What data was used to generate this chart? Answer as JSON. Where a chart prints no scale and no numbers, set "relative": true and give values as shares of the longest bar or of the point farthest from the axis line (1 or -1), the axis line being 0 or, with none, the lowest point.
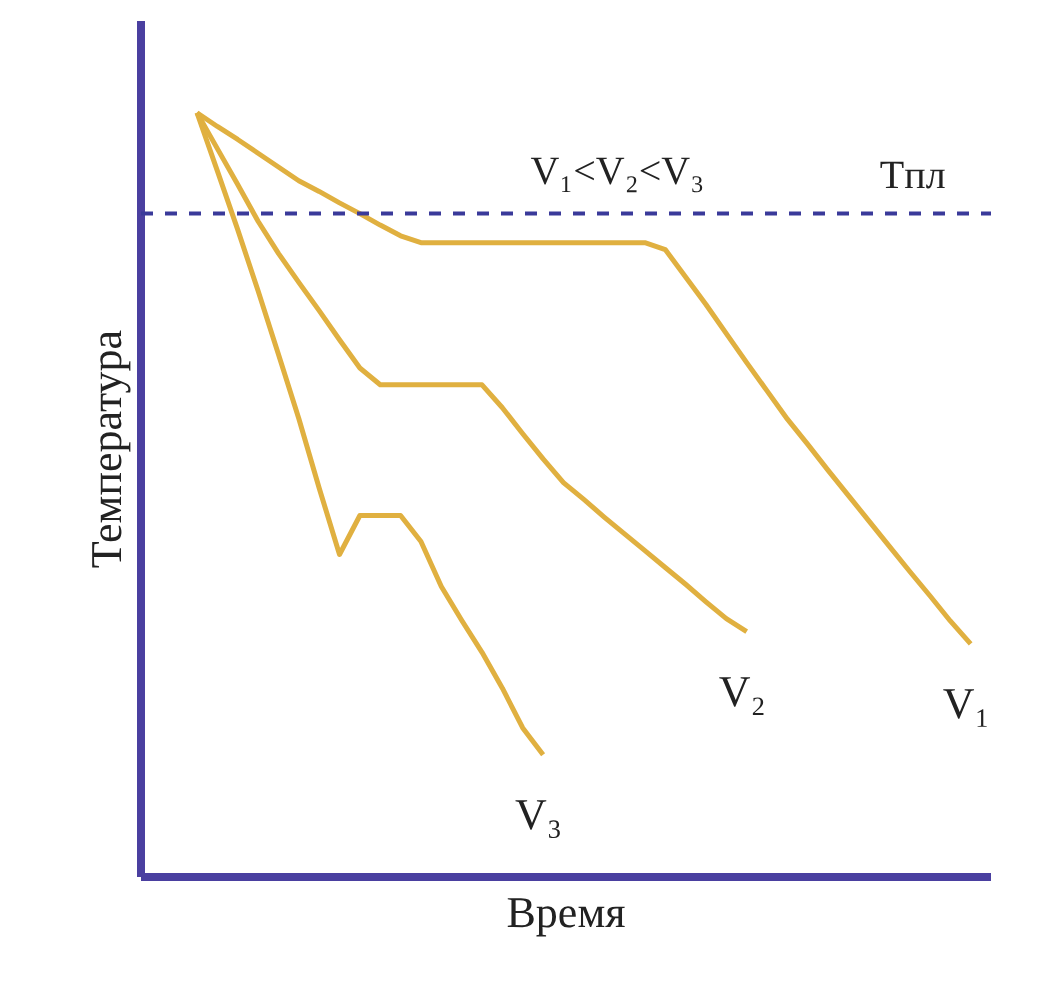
{
  "chart_data": {
    "type": "line",
    "relative": true,
    "xlabel": "Время",
    "ylabel": "Температура",
    "grid": false,
    "legend": false,
    "marker": "none",
    "line_style": "solid",
    "categories": [
      null,
      null,
      null,
      null,
      null,
      null,
      null,
      null,
      null,
      null,
      null,
      null,
      null,
      null,
      null,
      null,
      null,
      null,
      null,
      null,
      null,
      null,
      null,
      null,
      null,
      null,
      null,
      null,
      null,
      null,
      null,
      null,
      null,
      null,
      null,
      null,
      null,
      null,
      null
    ],
    "series": [
      {
        "name": "V₁",
        "color": "#e0b040",
        "values": [
          1.0,
          0.982,
          0.965,
          0.947,
          0.929,
          0.911,
          0.897,
          0.882,
          0.868,
          0.853,
          0.839,
          0.83,
          0.83,
          0.83,
          0.83,
          0.83,
          0.83,
          0.83,
          0.83,
          0.83,
          0.83,
          0.83,
          0.83,
          0.821,
          0.785,
          0.749,
          0.711,
          0.673,
          0.636,
          0.599,
          0.566,
          0.532,
          0.499,
          0.466,
          0.433,
          0.4,
          0.368,
          0.335,
          0.305
        ]
      },
      {
        "name": "V₂",
        "color": "#e0b040",
        "values": [
          1.0,
          0.953,
          0.906,
          0.858,
          0.816,
          0.778,
          0.741,
          0.703,
          0.666,
          0.644,
          0.644,
          0.644,
          0.644,
          0.644,
          0.644,
          0.614,
          0.58,
          0.547,
          0.516,
          0.494,
          0.471,
          0.449,
          0.427,
          0.405,
          0.383,
          0.36,
          0.338,
          0.321,
          null,
          null,
          null,
          null,
          null,
          null,
          null,
          null,
          null,
          null,
          null
        ]
      },
      {
        "name": "V₃",
        "color": "#e0b040",
        "values": [
          1.0,
          0.924,
          0.847,
          0.767,
          0.684,
          0.6,
          0.509,
          0.422,
          0.473,
          0.473,
          0.473,
          0.439,
          0.38,
          0.336,
          0.294,
          0.247,
          0.195,
          0.16,
          null,
          null,
          null,
          null,
          null,
          null,
          null,
          null,
          null,
          null,
          null,
          null,
          null,
          null,
          null,
          null,
          null,
          null,
          null,
          null,
          null
        ]
      }
    ],
    "ref_lines": [
      {
        "axis": "y",
        "value": 0.868,
        "label": "Tпл",
        "color": "#3a3a9a",
        "line_style": "dashed"
      }
    ],
    "annotations": [
      "V₁<V₂<V₃"
    ]
  }
}
